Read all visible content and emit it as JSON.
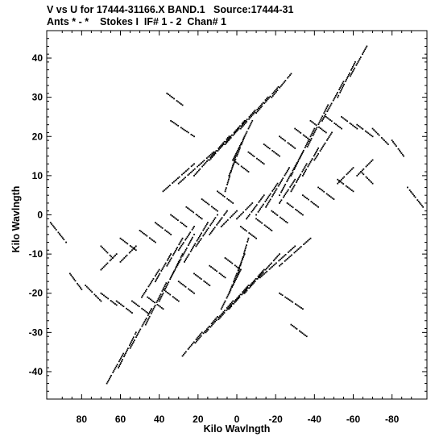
{
  "header": {
    "line1": "V vs U for 17444-31166.X BAND.1   Source:17444-31",
    "line2": "Ants * - *    Stokes I  IF# 1 - 2  Chan# 1"
  },
  "chart_data": {
    "type": "scatter",
    "title": "V vs U for 17444-31166.X BAND.1   Source:17444-31",
    "subtitle": "Ants * - *    Stokes I  IF# 1 - 2  Chan# 1",
    "xlabel": "Kilo Wavlngth",
    "ylabel": "Kilo Wavlngth",
    "xlim": [
      98,
      -98
    ],
    "ylim": [
      -47,
      47
    ],
    "x_ticks": [
      80,
      60,
      40,
      20,
      0,
      -20,
      -40,
      -60,
      -80
    ],
    "x_tick_labels": [
      "80",
      "60",
      "40",
      "20",
      "0",
      "-20",
      "-40",
      "-60",
      "-80"
    ],
    "y_ticks": [
      40,
      30,
      20,
      10,
      0,
      -10,
      -20,
      -30,
      -40
    ],
    "y_tick_labels": [
      "40",
      "30",
      "20",
      "10",
      "0",
      "-10",
      "-20",
      "-30",
      "-40"
    ],
    "marker_color": "#000000",
    "grid": false,
    "series": [
      {
        "tracks": [
          [
            -67,
            43,
            -58,
            35
          ],
          [
            -61,
            39,
            -52,
            30
          ],
          [
            -55,
            34,
            -44,
            24
          ],
          [
            -47,
            28,
            -36,
            17
          ],
          [
            -40,
            22,
            -28,
            10
          ],
          [
            -34,
            16,
            -22,
            5
          ],
          [
            -27,
            12,
            -15,
            2
          ],
          [
            -21,
            8,
            -10,
            0
          ],
          [
            -14,
            5,
            -5,
            -1
          ],
          [
            -8,
            3,
            0,
            -1
          ],
          [
            -49,
            21,
            -40,
            14
          ],
          [
            -42,
            17,
            -34,
            10
          ],
          [
            -36,
            13,
            -28,
            6
          ],
          [
            -30,
            9,
            -22,
            3
          ],
          [
            67,
            -43,
            58,
            -35
          ],
          [
            61,
            -39,
            52,
            -30
          ],
          [
            55,
            -34,
            44,
            -24
          ],
          [
            47,
            -28,
            36,
            -17
          ],
          [
            40,
            -22,
            28,
            -10
          ],
          [
            34,
            -16,
            22,
            -5
          ],
          [
            27,
            -12,
            15,
            -2
          ],
          [
            21,
            -8,
            10,
            0
          ],
          [
            14,
            -5,
            5,
            1
          ],
          [
            8,
            -3,
            0,
            1
          ],
          [
            49,
            -21,
            40,
            -14
          ],
          [
            42,
            -17,
            34,
            -10
          ],
          [
            36,
            -13,
            28,
            -6
          ],
          [
            30,
            -9,
            22,
            -3
          ],
          [
            -96,
            2,
            -88,
            7
          ],
          [
            -86,
            15,
            -80,
            19
          ],
          [
            -78,
            18,
            -70,
            22
          ],
          [
            -70,
            20,
            -62,
            23
          ],
          [
            -62,
            22,
            -54,
            25
          ],
          [
            -54,
            22,
            -46,
            25
          ],
          [
            -46,
            21,
            -38,
            24
          ],
          [
            -38,
            19,
            -30,
            22
          ],
          [
            -30,
            17,
            -22,
            20
          ],
          [
            -22,
            15,
            -14,
            18
          ],
          [
            -14,
            13,
            -6,
            16
          ],
          [
            -6,
            11,
            2,
            14
          ],
          [
            -70,
            8,
            -64,
            11
          ],
          [
            -60,
            6,
            -52,
            9
          ],
          [
            -50,
            4,
            -42,
            7
          ],
          [
            -42,
            2,
            -34,
            5
          ],
          [
            -34,
            0,
            -26,
            3
          ],
          [
            -26,
            -2,
            -18,
            1
          ],
          [
            -18,
            -4,
            -10,
            -1
          ],
          [
            -10,
            -6,
            -2,
            -3
          ],
          [
            96,
            -2,
            88,
            -7
          ],
          [
            86,
            -15,
            80,
            -19
          ],
          [
            78,
            -18,
            70,
            -22
          ],
          [
            70,
            -20,
            62,
            -23
          ],
          [
            62,
            -22,
            54,
            -25
          ],
          [
            54,
            -22,
            46,
            -25
          ],
          [
            46,
            -21,
            38,
            -24
          ],
          [
            38,
            -19,
            30,
            -22
          ],
          [
            30,
            -17,
            22,
            -20
          ],
          [
            22,
            -15,
            14,
            -18
          ],
          [
            14,
            -13,
            6,
            -16
          ],
          [
            6,
            -11,
            -2,
            -14
          ],
          [
            70,
            -8,
            64,
            -11
          ],
          [
            60,
            -6,
            52,
            -9
          ],
          [
            50,
            -4,
            42,
            -7
          ],
          [
            42,
            -2,
            34,
            -5
          ],
          [
            34,
            0,
            26,
            -3
          ],
          [
            26,
            2,
            18,
            -1
          ],
          [
            18,
            4,
            10,
            1
          ],
          [
            10,
            6,
            2,
            3
          ],
          [
            -18,
            30,
            -28,
            36
          ],
          [
            -10,
            26,
            -22,
            33
          ],
          [
            -2,
            22,
            -16,
            30
          ],
          [
            6,
            18,
            -10,
            27
          ],
          [
            14,
            14,
            -4,
            24
          ],
          [
            22,
            10,
            4,
            20
          ],
          [
            30,
            8,
            12,
            16
          ],
          [
            38,
            6,
            22,
            13
          ],
          [
            18,
            -30,
            28,
            -36
          ],
          [
            10,
            -26,
            22,
            -33
          ],
          [
            2,
            -22,
            16,
            -30
          ],
          [
            -6,
            -18,
            10,
            -27
          ],
          [
            -14,
            -14,
            4,
            -24
          ],
          [
            -22,
            -10,
            -4,
            -20
          ],
          [
            -30,
            -8,
            -12,
            -16
          ],
          [
            -38,
            -6,
            -22,
            -13
          ],
          [
            -8,
            24,
            2,
            14
          ],
          [
            -4,
            20,
            4,
            10
          ],
          [
            0,
            16,
            6,
            6
          ],
          [
            8,
            -24,
            -2,
            -14
          ],
          [
            4,
            -20,
            -4,
            -10
          ],
          [
            0,
            -16,
            -6,
            -6
          ],
          [
            -62,
            10,
            -70,
            14
          ],
          [
            -52,
            8,
            -60,
            12
          ],
          [
            62,
            -10,
            70,
            -14
          ],
          [
            52,
            -8,
            60,
            -12
          ],
          [
            36,
            31,
            28,
            28
          ],
          [
            -36,
            -31,
            -28,
            -28
          ],
          [
            34,
            24,
            22,
            20
          ],
          [
            -34,
            -24,
            -22,
            -20
          ]
        ]
      }
    ]
  }
}
